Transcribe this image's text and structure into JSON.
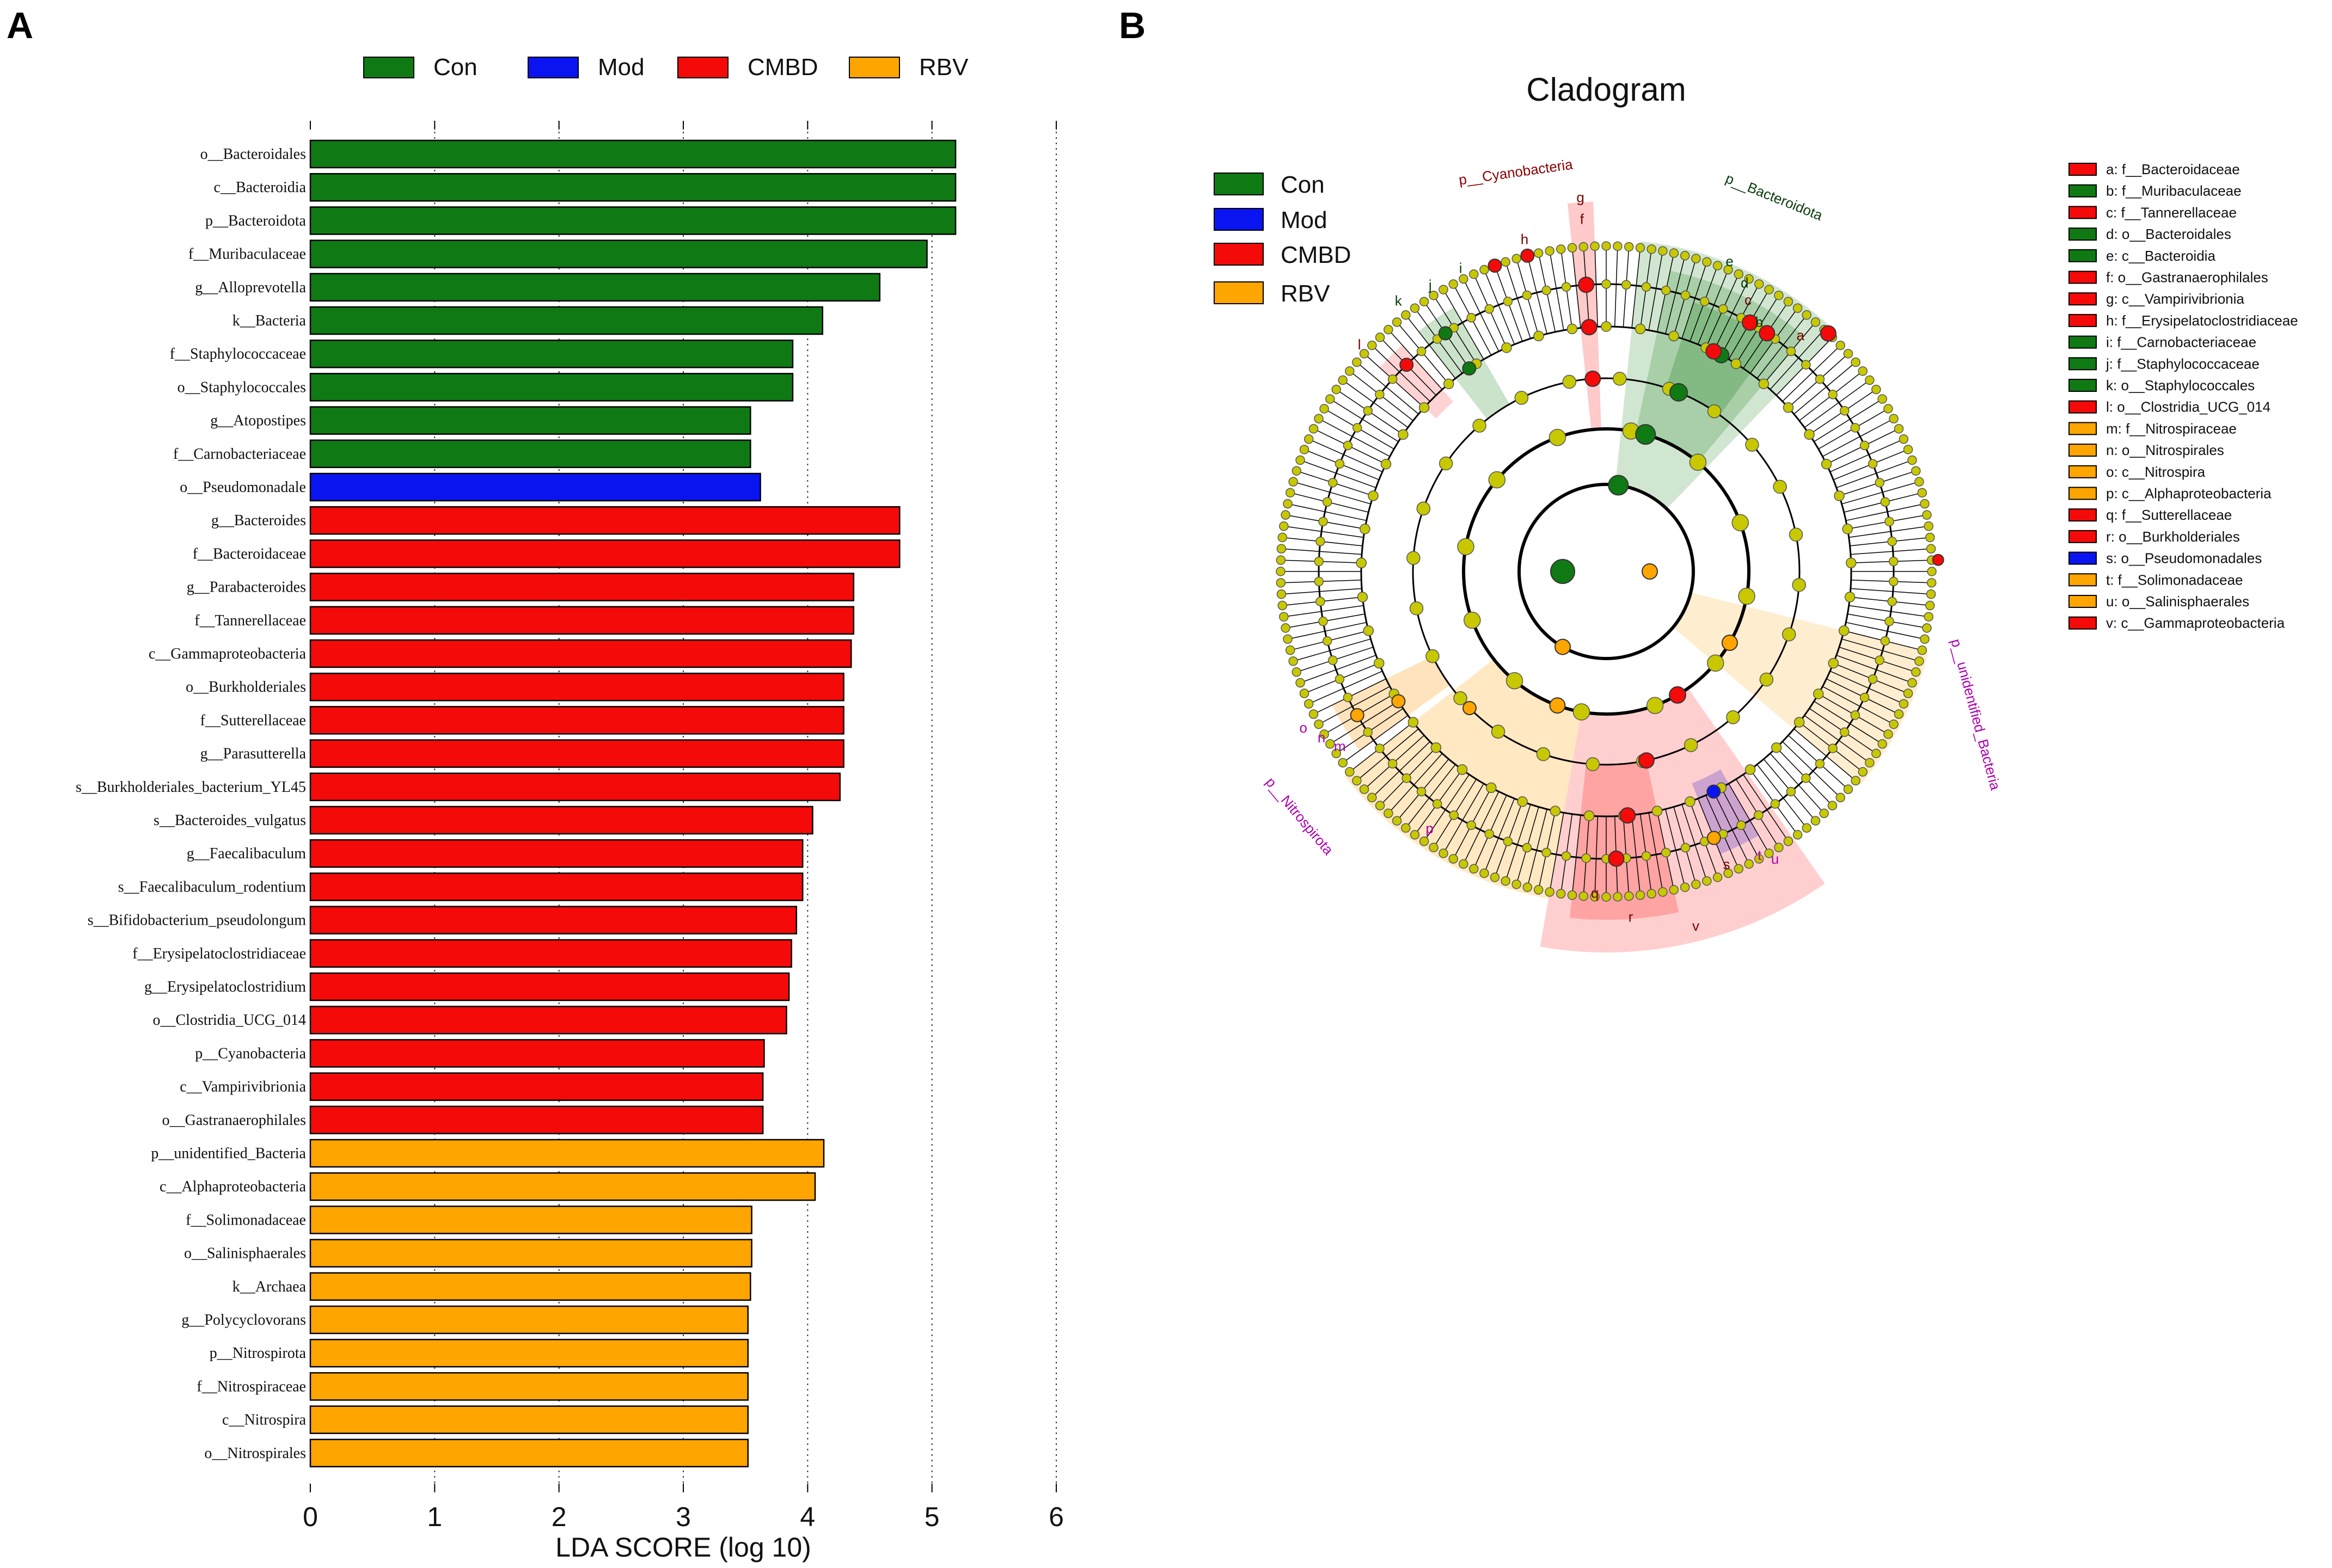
{
  "panel_a": {
    "letter": "A",
    "legend": [
      {
        "name": "Con",
        "color": "#0f7a14"
      },
      {
        "name": "Mod",
        "color": "#0a14f0"
      },
      {
        "name": "CMBD",
        "color": "#f50a0a"
      },
      {
        "name": "RBV",
        "color": "#ffa500"
      }
    ]
  },
  "panel_b": {
    "letter": "B",
    "title": "Cladogram",
    "legend": [
      {
        "name": "Con",
        "color": "#0f7a14"
      },
      {
        "name": "Mod",
        "color": "#0a14f0"
      },
      {
        "name": "CMBD",
        "color": "#f50a0a"
      },
      {
        "name": "RBV",
        "color": "#ffa500"
      }
    ],
    "side_legend": [
      {
        "text": "a: f__Bacteroidaceae",
        "group": "CMBD"
      },
      {
        "text": "b: f__Muribaculaceae",
        "group": "Con"
      },
      {
        "text": "c: f__Tannerellaceae",
        "group": "CMBD"
      },
      {
        "text": "d: o__Bacteroidales",
        "group": "Con"
      },
      {
        "text": "e: c__Bacteroidia",
        "group": "Con"
      },
      {
        "text": "f: o__Gastranaerophilales",
        "group": "CMBD"
      },
      {
        "text": "g: c__Vampirivibrionia",
        "group": "CMBD"
      },
      {
        "text": "h: f__Erysipelatoclostridiaceae",
        "group": "CMBD"
      },
      {
        "text": "i: f__Carnobacteriaceae",
        "group": "Con"
      },
      {
        "text": "j: f__Staphylococcaceae",
        "group": "Con"
      },
      {
        "text": "k: o__Staphylococcales",
        "group": "Con"
      },
      {
        "text": "l: o__Clostridia_UCG_014",
        "group": "CMBD"
      },
      {
        "text": "m: f__Nitrospiraceae",
        "group": "RBV"
      },
      {
        "text": "n: o__Nitrospirales",
        "group": "RBV"
      },
      {
        "text": "o: c__Nitrospira",
        "group": "RBV"
      },
      {
        "text": "p: c__Alphaproteobacteria",
        "group": "RBV"
      },
      {
        "text": "q: f__Sutterellaceae",
        "group": "CMBD"
      },
      {
        "text": "r: o__Burkholderiales",
        "group": "CMBD"
      },
      {
        "text": "s: o__Pseudomonadales",
        "group": "Mod"
      },
      {
        "text": "t: f__Solimonadaceae",
        "group": "RBV"
      },
      {
        "text": "u: o__Salinisphaerales",
        "group": "RBV"
      },
      {
        "text": "v: c__Gammaproteobacteria",
        "group": "CMBD"
      }
    ],
    "clade_labels": {
      "cyano": "p__Cyanobacteria",
      "bacteroidota": "p__Bacteroidota",
      "nitrospirota": "p__Nitrospirota",
      "unidentified": "p__unidentified_Bacteria",
      "letters": [
        "a",
        "b",
        "c",
        "d",
        "e",
        "f",
        "g",
        "h",
        "i",
        "j",
        "k",
        "l",
        "m",
        "n",
        "o",
        "p",
        "q",
        "r",
        "s",
        "t",
        "u",
        "v"
      ]
    }
  },
  "chart_data": [
    {
      "type": "bar",
      "orientation": "horizontal",
      "title": "",
      "xlabel": "LDA SCORE (log 10)",
      "ylabel": "",
      "xlim": [
        0,
        6
      ],
      "xticks": [
        "0",
        "1",
        "2",
        "3",
        "4",
        "5",
        "6"
      ],
      "grid": "vertical dotted",
      "legend_position": "top",
      "categories": [
        "o__Bacteroidales",
        "c__Bacteroidia",
        "p__Bacteroidota",
        "f__Muribaculaceae",
        "g__Alloprevotella",
        "k__Bacteria",
        "f__Staphylococcaceae",
        "o__Staphylococcales",
        "g__Atopostipes",
        "f__Carnobacteriaceae",
        "o__Pseudomonadale",
        "g__Bacteroides",
        "f__Bacteroidaceae",
        "g__Parabacteroides",
        "f__Tannerellaceae",
        "c__Gammaproteobacteria",
        "o__Burkholderiales",
        "f__Sutterellaceae",
        "g__Parasutterella",
        "s__Burkholderiales_bacterium_YL45",
        "s__Bacteroides_vulgatus",
        "g__Faecalibaculum",
        "s__Faecalibaculum_rodentium",
        "s__Bifidobacterium_pseudolongum",
        "f__Erysipelatoclostridiaceae",
        "g__Erysipelatoclostridium",
        "o__Clostridia_UCG_014",
        "p__Cyanobacteria",
        "c__Vampirivibrionia",
        "o__Gastranaerophilales",
        "p__unidentified_Bacteria",
        "c__Alphaproteobacteria",
        "f__Solimonadaceae",
        "o__Salinisphaerales",
        "k__Archaea",
        "g__Polycyclovorans",
        "p__Nitrospirota",
        "f__Nitrospiraceae",
        "c__Nitrospira",
        "o__Nitrospirales"
      ],
      "values": [
        5.19,
        5.19,
        5.19,
        4.96,
        4.58,
        4.12,
        3.88,
        3.88,
        3.54,
        3.54,
        3.62,
        4.74,
        4.74,
        4.37,
        4.37,
        4.35,
        4.29,
        4.29,
        4.29,
        4.26,
        4.04,
        3.96,
        3.96,
        3.91,
        3.87,
        3.85,
        3.83,
        3.65,
        3.64,
        3.64,
        4.13,
        4.06,
        3.55,
        3.55,
        3.54,
        3.52,
        3.52,
        3.52,
        3.52,
        3.52
      ],
      "groups": [
        "Con",
        "Con",
        "Con",
        "Con",
        "Con",
        "Con",
        "Con",
        "Con",
        "Con",
        "Con",
        "Mod",
        "CMBD",
        "CMBD",
        "CMBD",
        "CMBD",
        "CMBD",
        "CMBD",
        "CMBD",
        "CMBD",
        "CMBD",
        "CMBD",
        "CMBD",
        "CMBD",
        "CMBD",
        "CMBD",
        "CMBD",
        "CMBD",
        "CMBD",
        "CMBD",
        "CMBD",
        "RBV",
        "RBV",
        "RBV",
        "RBV",
        "RBV",
        "RBV",
        "RBV",
        "RBV",
        "RBV",
        "RBV"
      ]
    }
  ]
}
